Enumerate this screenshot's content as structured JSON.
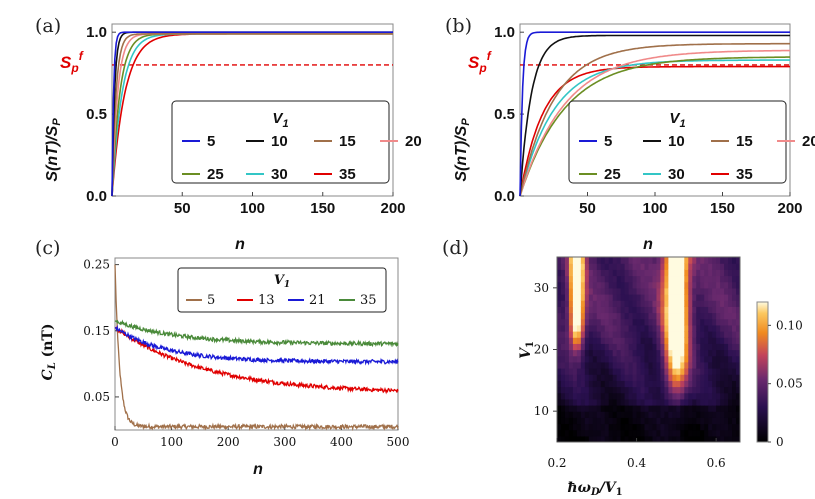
{
  "chart_data": [
    {
      "id": "a",
      "panel_label": "(a)",
      "type": "line",
      "ylabel": "S(nT)/S_P",
      "xlabel": "n",
      "xlim": [
        0,
        200
      ],
      "ylim": [
        0,
        1.05
      ],
      "xticks": [
        50,
        100,
        150,
        200
      ],
      "yticks": [
        0.0,
        0.5,
        1.0
      ],
      "xtick_labels": [
        "50",
        "100",
        "150",
        "200"
      ],
      "ytick_labels": [
        "0.0",
        "0.5",
        "1.0"
      ],
      "reference_line": {
        "label": "S_p^f",
        "y": 0.8,
        "color": "#e00000",
        "style": "dashed"
      },
      "legend": {
        "title": "V₁",
        "placement": "center-right"
      },
      "series": [
        {
          "name": "5",
          "color": "#1a1ad6",
          "plateau": 1.0,
          "rate": 0.9
        },
        {
          "name": "10",
          "color": "#111111",
          "plateau": 1.0,
          "rate": 0.55
        },
        {
          "name": "15",
          "color": "#a0704a",
          "plateau": 0.99,
          "rate": 0.35
        },
        {
          "name": "20",
          "color": "#f08a8a",
          "plateau": 0.99,
          "rate": 0.25
        },
        {
          "name": "25",
          "color": "#6b8e23",
          "plateau": 0.99,
          "rate": 0.18
        },
        {
          "name": "30",
          "color": "#33c6c6",
          "plateau": 0.99,
          "rate": 0.14
        },
        {
          "name": "35",
          "color": "#e00000",
          "plateau": 0.99,
          "rate": 0.11
        }
      ]
    },
    {
      "id": "b",
      "panel_label": "(b)",
      "type": "line",
      "ylabel": "S(nT)/S_P",
      "xlabel": "n",
      "xlim": [
        0,
        200
      ],
      "ylim": [
        0,
        1.05
      ],
      "xticks": [
        50,
        100,
        150,
        200
      ],
      "yticks": [
        0.0,
        0.5,
        1.0
      ],
      "xtick_labels": [
        "50",
        "100",
        "150",
        "200"
      ],
      "ytick_labels": [
        "0.0",
        "0.5",
        "1.0"
      ],
      "reference_line": {
        "label": "S_p^f",
        "y": 0.8,
        "color": "#e00000",
        "style": "dashed"
      },
      "legend": {
        "title": "V₁",
        "placement": "center-right"
      },
      "series": [
        {
          "name": "5",
          "color": "#1a1ad6",
          "plateau": 1.0,
          "rate": 0.55
        },
        {
          "name": "10",
          "color": "#111111",
          "plateau": 0.98,
          "rate": 0.12
        },
        {
          "name": "15",
          "color": "#a0704a",
          "plateau": 0.93,
          "rate": 0.04
        },
        {
          "name": "20",
          "color": "#f08a8a",
          "plateau": 0.89,
          "rate": 0.03
        },
        {
          "name": "25",
          "color": "#6b8e23",
          "plateau": 0.85,
          "rate": 0.03
        },
        {
          "name": "30",
          "color": "#33c6c6",
          "plateau": 0.83,
          "rate": 0.04
        },
        {
          "name": "35",
          "color": "#e00000",
          "plateau": 0.79,
          "rate": 0.06
        }
      ]
    },
    {
      "id": "c",
      "panel_label": "(c)",
      "type": "line",
      "ylabel": "C_L (nT)",
      "xlabel": "n",
      "xlim": [
        0,
        500
      ],
      "ylim": [
        0.0,
        0.26
      ],
      "xticks": [
        0,
        100,
        200,
        300,
        400,
        500
      ],
      "yticks": [
        0.05,
        0.15,
        0.25
      ],
      "xtick_labels": [
        "0",
        "100",
        "200",
        "300",
        "400",
        "500"
      ],
      "ytick_labels": [
        "0.05",
        "0.15",
        "0.25"
      ],
      "legend": {
        "title": "V₁",
        "placement": "top-right"
      },
      "series": [
        {
          "name": "5",
          "color": "#a0704a",
          "start": 0.25,
          "end": 0.005,
          "tau": 8
        },
        {
          "name": "13",
          "color": "#e00000",
          "start": 0.155,
          "end": 0.055,
          "tau": 160
        },
        {
          "name": "21",
          "color": "#1a1ad6",
          "start": 0.155,
          "end": 0.103,
          "tau": 90
        },
        {
          "name": "35",
          "color": "#4a8a3a",
          "start": 0.165,
          "end": 0.13,
          "tau": 110
        }
      ]
    },
    {
      "id": "d",
      "panel_label": "(d)",
      "type": "heatmap",
      "ylabel": "V₁",
      "xlabel": "ħω_D/V₁",
      "xlim": [
        0.2,
        0.66
      ],
      "ylim": [
        5,
        35
      ],
      "xticks": [
        0.2,
        0.4,
        0.6
      ],
      "yticks": [
        10,
        20,
        30
      ],
      "xtick_labels": [
        "0.2",
        "0.4",
        "0.6"
      ],
      "ytick_labels": [
        "10",
        "20",
        "30"
      ],
      "colorbar": {
        "min": 0,
        "max": 0.12,
        "ticks": [
          0,
          0.05,
          0.1
        ],
        "tick_labels": [
          "0",
          "0.05",
          "0.10"
        ]
      }
    }
  ]
}
